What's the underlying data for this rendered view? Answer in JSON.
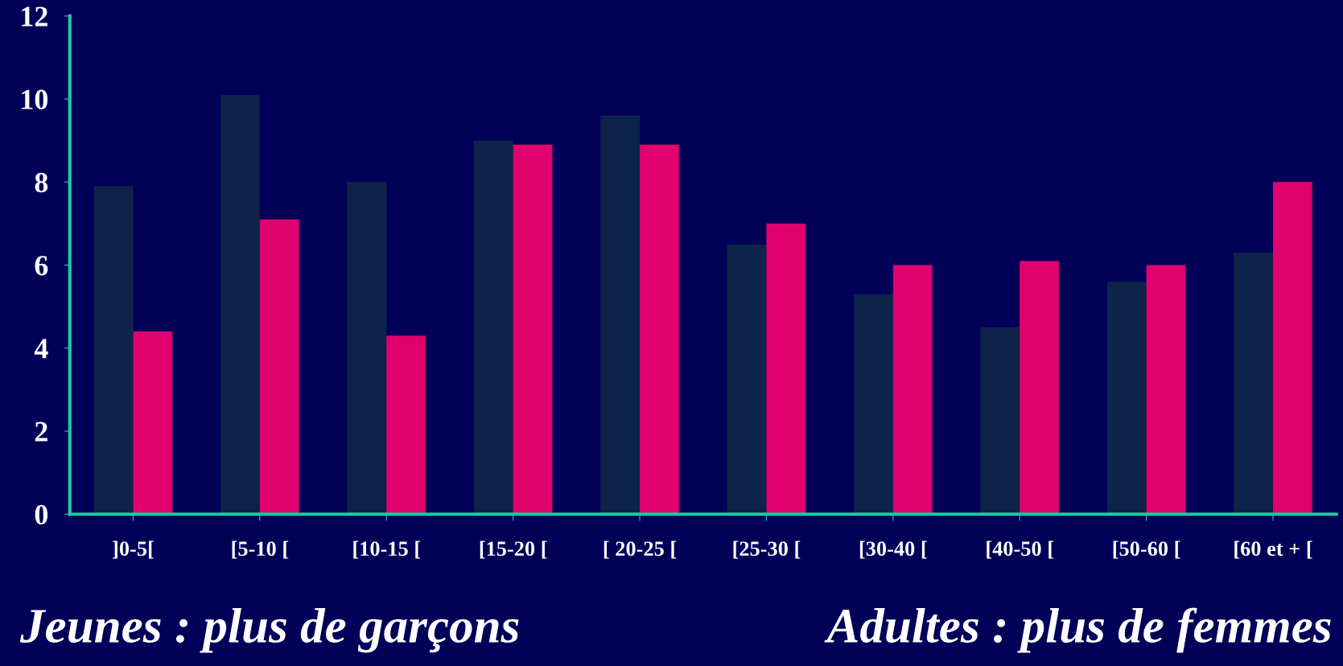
{
  "chart_data": {
    "type": "bar",
    "categories": [
      "]0-5[",
      "[5-10 [",
      "[10-15 [",
      "[15-20 [",
      "[ 20-25 [",
      "[25-30 [",
      "[30-40 [",
      "[40-50 [",
      "[50-60 [",
      "[60 et + ["
    ],
    "series": [
      {
        "color": "#0d2448",
        "values": [
          7.9,
          10.1,
          8.0,
          9.0,
          9.6,
          6.5,
          5.3,
          4.5,
          5.6,
          6.3
        ]
      },
      {
        "color": "#e0006e",
        "values": [
          4.4,
          7.1,
          4.3,
          8.9,
          8.9,
          7.0,
          6.0,
          6.1,
          6.0,
          8.0
        ]
      }
    ],
    "ylim": [
      0,
      12
    ],
    "yticks": [
      0,
      2,
      4,
      6,
      8,
      10,
      12
    ],
    "grid": false,
    "legend": false,
    "annotations": [
      "Jeunes : plus de garçons",
      "Adultes : plus de femmes"
    ]
  }
}
